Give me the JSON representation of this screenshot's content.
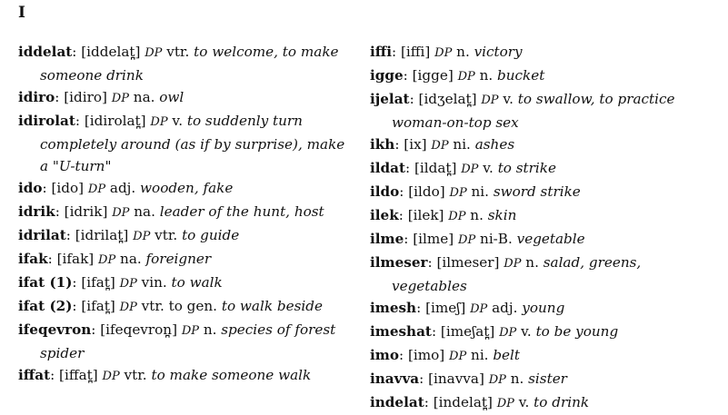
{
  "section_letter": "I",
  "left_entries": [
    {
      "hw": "iddelat",
      "ipa": "[iddelat̪]",
      "src": "DP",
      "pos": "vtr.",
      "gloss": "to welcome, to make someone drink",
      "gloss_plain": ""
    },
    {
      "hw": "idiro",
      "ipa": "[idiro]",
      "src": "DP",
      "pos": "na.",
      "gloss": "owl",
      "gloss_plain": ""
    },
    {
      "hw": "idirolat",
      "ipa": "[idirolat̪]",
      "src": "DP",
      "pos": "v.",
      "gloss": "to suddenly turn completely around (as if by surprise), make a \"U-turn\"",
      "gloss_plain": ""
    },
    {
      "hw": "ido",
      "ipa": "[ido]",
      "src": "DP",
      "pos": "adj.",
      "gloss": "wooden, fake",
      "gloss_plain": ""
    },
    {
      "hw": "idrik",
      "ipa": "[idrik]",
      "src": "DP",
      "pos": "na.",
      "gloss": "leader of the hunt, host",
      "gloss_plain": ""
    },
    {
      "hw": "idrilat",
      "ipa": "[idrilat̪]",
      "src": "DP",
      "pos": "vtr.",
      "gloss": "to guide",
      "gloss_plain": ""
    },
    {
      "hw": "ifak",
      "ipa": "[ifak]",
      "src": "DP",
      "pos": "na.",
      "gloss": "foreigner",
      "gloss_plain": ""
    },
    {
      "hw": "ifat (1)",
      "ipa": "[ifat̪]",
      "src": "DP",
      "pos": "vin.",
      "gloss": "to walk",
      "gloss_plain": ""
    },
    {
      "hw": "ifat (2)",
      "ipa": "[ifat̪]",
      "src": "DP",
      "pos": "vtr.",
      "gloss_plain": "to gen.",
      "gloss": "to walk beside"
    },
    {
      "hw": "ifeqevron",
      "ipa": "[ifeqevron̪]",
      "src": "DP",
      "pos": "n.",
      "gloss": "species of forest spider",
      "gloss_plain": ""
    },
    {
      "hw": "iffat",
      "ipa": "[iffat̪]",
      "src": "DP",
      "pos": "vtr.",
      "gloss": "to make someone walk",
      "gloss_plain": ""
    }
  ],
  "right_entries": [
    {
      "hw": "iffi",
      "ipa": "[iffi]",
      "src": "DP",
      "pos": "n.",
      "gloss": "victory",
      "gloss_plain": ""
    },
    {
      "hw": "igge",
      "ipa": "[igge]",
      "src": "DP",
      "pos": "n.",
      "gloss": "bucket",
      "gloss_plain": ""
    },
    {
      "hw": "ijelat",
      "ipa": "[idʒelat̪]",
      "src": "DP",
      "pos": "v.",
      "gloss": "to swallow, to practice woman-on-top sex",
      "gloss_plain": ""
    },
    {
      "hw": "ikh",
      "ipa": "[ix]",
      "src": "DP",
      "pos": "ni.",
      "gloss": "ashes",
      "gloss_plain": ""
    },
    {
      "hw": "ildat",
      "ipa": "[ildat̪]",
      "src": "DP",
      "pos": "v.",
      "gloss": "to strike",
      "gloss_plain": ""
    },
    {
      "hw": "ildo",
      "ipa": "[ildo]",
      "src": "DP",
      "pos": "ni.",
      "gloss": "sword strike",
      "gloss_plain": ""
    },
    {
      "hw": "ilek",
      "ipa": "[ilek]",
      "src": "DP",
      "pos": "n.",
      "gloss": "skin",
      "gloss_plain": ""
    },
    {
      "hw": "ilme",
      "ipa": "[ilme]",
      "src": "DP",
      "pos": "ni-B.",
      "gloss": "vegetable",
      "gloss_plain": ""
    },
    {
      "hw": "ilmeser",
      "ipa": "[ilmeser]",
      "src": "DP",
      "pos": "n.",
      "gloss": "salad, greens, vegetables",
      "gloss_plain": ""
    },
    {
      "hw": "imesh",
      "ipa": "[imeʃ]",
      "src": "DP",
      "pos": "adj.",
      "gloss": "young",
      "gloss_plain": ""
    },
    {
      "hw": "imeshat",
      "ipa": "[imeʃat̪]",
      "src": "DP",
      "pos": "v.",
      "gloss": "to be young",
      "gloss_plain": ""
    },
    {
      "hw": "imo",
      "ipa": "[imo]",
      "src": "DP",
      "pos": "ni.",
      "gloss": "belt",
      "gloss_plain": ""
    },
    {
      "hw": "inavva",
      "ipa": "[inavva]",
      "src": "DP",
      "pos": "n.",
      "gloss": "sister",
      "gloss_plain": ""
    },
    {
      "hw": "indelat",
      "ipa": "[indelat̪]",
      "src": "DP",
      "pos": "v.",
      "gloss": "to drink",
      "gloss_plain": ""
    }
  ]
}
